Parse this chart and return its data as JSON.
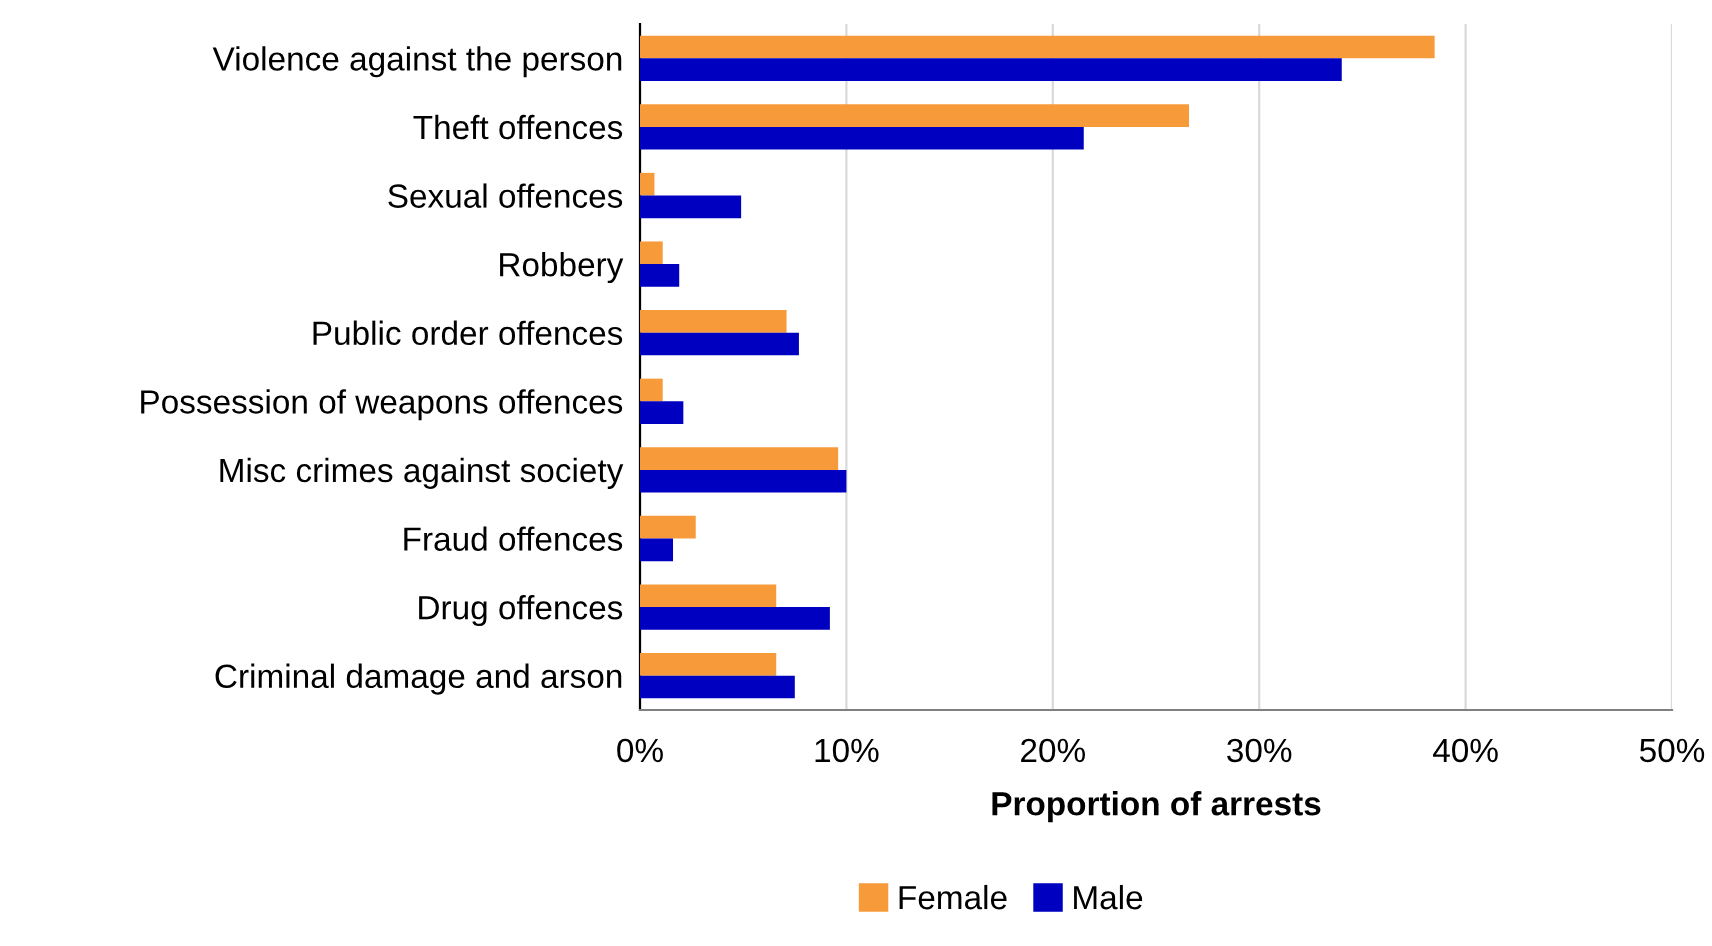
{
  "chart_data": {
    "type": "bar",
    "orientation": "horizontal",
    "xlabel": "Proportion of arrests",
    "categories": [
      "Violence against the person",
      "Theft offences",
      "Sexual offences",
      "Robbery",
      "Public order offences",
      "Possession of weapons offences",
      "Misc crimes against society",
      "Fraud offences",
      "Drug offences",
      "Criminal damage and arson"
    ],
    "series": [
      {
        "name": "Female",
        "color": "#f79a3a",
        "values": [
          38.5,
          26.6,
          0.7,
          1.1,
          7.1,
          1.1,
          9.6,
          2.7,
          6.6,
          6.6
        ]
      },
      {
        "name": "Male",
        "color": "#0000c0",
        "values": [
          34.0,
          21.5,
          4.9,
          1.9,
          7.7,
          2.1,
          10.0,
          1.6,
          9.2,
          7.5
        ]
      }
    ],
    "xlim": [
      0,
      50
    ],
    "xticks": [
      {
        "value": 0,
        "label": "0%"
      },
      {
        "value": 10,
        "label": "10%"
      },
      {
        "value": 20,
        "label": "20%"
      },
      {
        "value": 30,
        "label": "30%"
      },
      {
        "value": 40,
        "label": "40%"
      },
      {
        "value": 50,
        "label": "50%"
      }
    ],
    "grid": "x",
    "legend": "bottom"
  }
}
